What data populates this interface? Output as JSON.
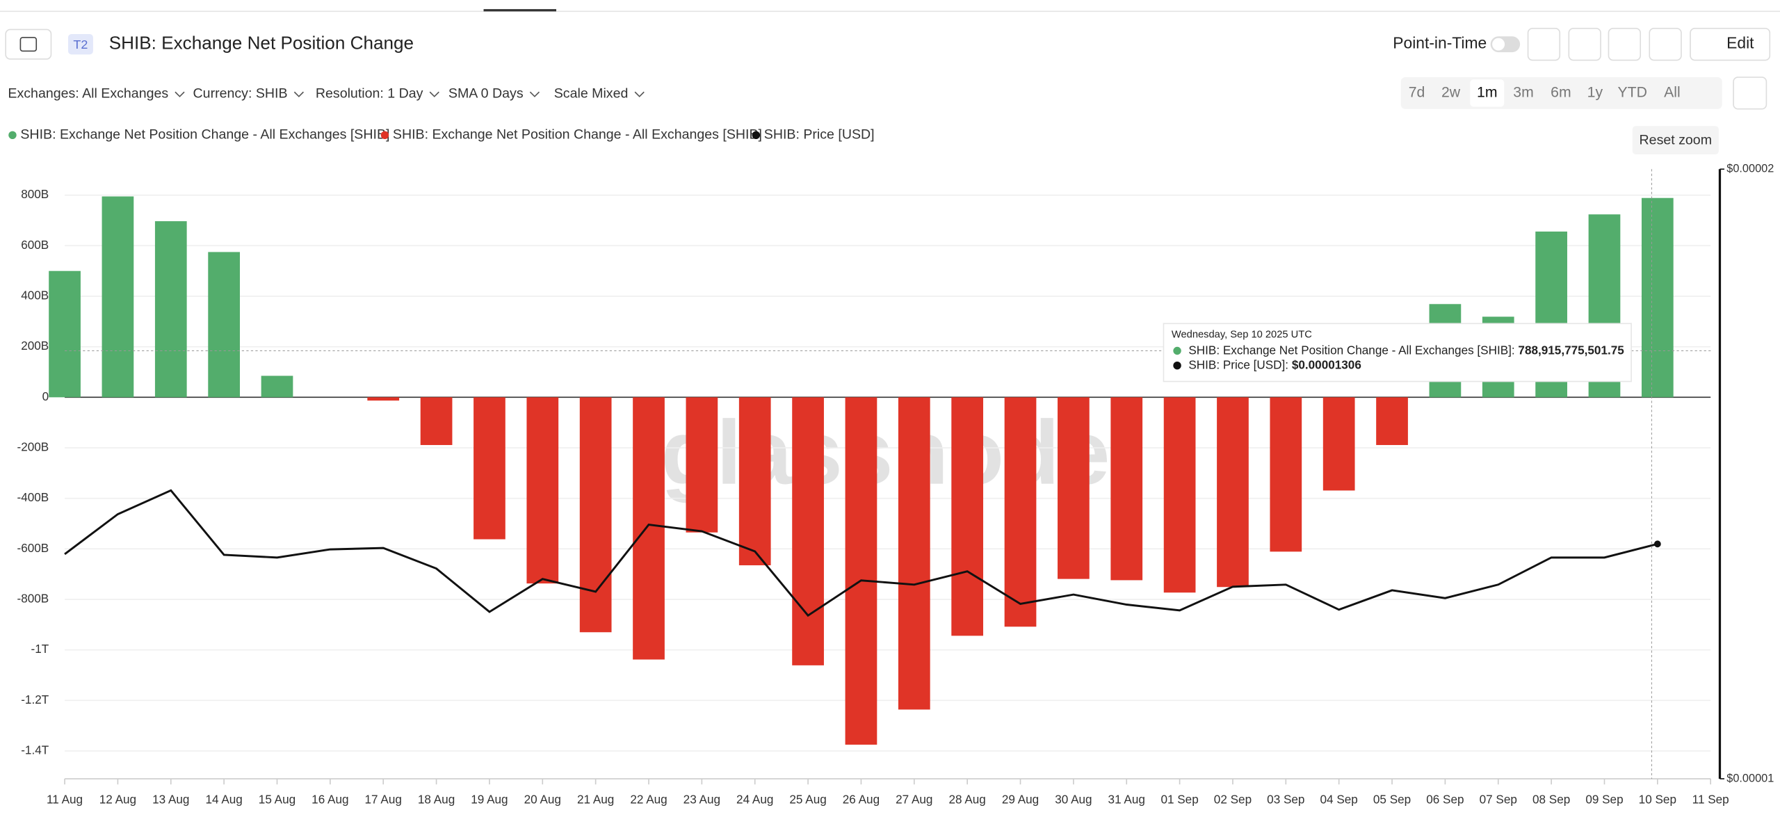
{
  "ui": {
    "badge": "T2",
    "title": "SHIB: Exchange Net Position Change",
    "point_in_time": "Point-in-Time",
    "edit": "Edit",
    "filters": [
      "Exchanges: All Exchanges",
      "Currency: SHIB",
      "Resolution: 1 Day",
      "SMA 0 Days",
      "Scale Mixed"
    ],
    "ranges": [
      "7d",
      "2w",
      "1m",
      "3m",
      "6m",
      "1y",
      "YTD",
      "All"
    ],
    "active_range": "1m",
    "reset_zoom": "Reset zoom",
    "watermark": "glassnode"
  },
  "chart_data": {
    "type": "bar-line",
    "categories": [
      "11 Aug",
      "12 Aug",
      "13 Aug",
      "14 Aug",
      "15 Aug",
      "16 Aug",
      "17 Aug",
      "18 Aug",
      "19 Aug",
      "20 Aug",
      "21 Aug",
      "22 Aug",
      "23 Aug",
      "24 Aug",
      "25 Aug",
      "26 Aug",
      "27 Aug",
      "28 Aug",
      "29 Aug",
      "30 Aug",
      "31 Aug",
      "01 Sep",
      "02 Sep",
      "03 Sep",
      "04 Sep",
      "05 Sep",
      "06 Sep",
      "07 Sep",
      "08 Sep",
      "09 Sep",
      "10 Sep",
      "11 Sep"
    ],
    "series": [
      {
        "name": "SHIB: Exchange Net Position Change - All Exchanges [SHIB]",
        "color": "#53ad6c",
        "kind": "bar",
        "values": [
          500000000000.0,
          795000000000.0,
          697000000000.0,
          575000000000.0,
          85000000000.0,
          null,
          null,
          null,
          null,
          null,
          null,
          null,
          null,
          null,
          null,
          null,
          null,
          null,
          null,
          null,
          null,
          null,
          null,
          null,
          null,
          null,
          369000000000.0,
          319000000000.0,
          656000000000.0,
          724000000000.0,
          788915775501.75,
          null
        ]
      },
      {
        "name": "SHIB: Exchange Net Position Change - All Exchanges [SHIB]",
        "color": "#e03427",
        "kind": "bar",
        "values": [
          null,
          null,
          null,
          null,
          null,
          null,
          -13000000000.0,
          -189000000000.0,
          -562000000000.0,
          -737000000000.0,
          -930000000000.0,
          -1038000000000.0,
          -535000000000.0,
          -665000000000.0,
          -1061000000000.0,
          -1375000000000.0,
          -1236000000000.0,
          -944000000000.0,
          -908000000000.0,
          -719000000000.0,
          -724000000000.0,
          -773000000000.0,
          -751000000000.0,
          -611000000000.0,
          -369000000000.0,
          -189000000000.0,
          null,
          null,
          null,
          null,
          null,
          null
        ]
      },
      {
        "name": "SHIB: Price [USD]",
        "color": "#111111",
        "kind": "line",
        "axis": "y2",
        "values": [
          1.291e-05,
          1.351e-05,
          1.388e-05,
          1.29e-05,
          1.286e-05,
          1.298e-05,
          1.3e-05,
          1.27e-05,
          1.209e-05,
          1.255e-05,
          1.237e-05,
          1.335e-05,
          1.325e-05,
          1.295e-05,
          1.204e-05,
          1.253e-05,
          1.247e-05,
          1.266e-05,
          1.22e-05,
          1.233e-05,
          1.219e-05,
          1.211e-05,
          1.244e-05,
          1.247e-05,
          1.212e-05,
          1.239e-05,
          1.228e-05,
          1.247e-05,
          1.286e-05,
          1.286e-05,
          1.306e-05,
          null
        ]
      }
    ],
    "ylim": [
      -1510000000000,
      903000000000
    ],
    "yticks": [
      {
        "value": 800000000000,
        "label": "800B"
      },
      {
        "value": 600000000000,
        "label": "600B"
      },
      {
        "value": 400000000000,
        "label": "400B"
      },
      {
        "value": 200000000000,
        "label": "200B"
      },
      0,
      {
        "value": -200000000000,
        "label": "-200B"
      },
      {
        "value": -400000000000,
        "label": "-400B"
      },
      {
        "value": -600000000000,
        "label": "-600B"
      },
      {
        "value": -800000000000,
        "label": "-800B"
      },
      {
        "value": -1000000000000,
        "label": "-1T"
      },
      {
        "value": -1200000000000,
        "label": "-1.2T"
      },
      {
        "value": -1400000000000,
        "label": "-1.4T"
      }
    ],
    "y2lim": [
      1e-05,
      2e-05
    ],
    "y2log": true,
    "y2ticks": [
      {
        "value": 2e-05,
        "label": "$0.00002"
      },
      {
        "value": 1e-05,
        "label": "$0.00001"
      }
    ],
    "grid": true,
    "tooltip": {
      "date": "Wednesday, Sep 10 2025 UTC",
      "rows": [
        {
          "label": "SHIB: Exchange Net Position Change - All Exchanges [SHIB]:",
          "value": "788,915,775,501.75"
        },
        {
          "label": "SHIB: Price [USD]:",
          "value": "$0.00001306"
        }
      ]
    }
  }
}
